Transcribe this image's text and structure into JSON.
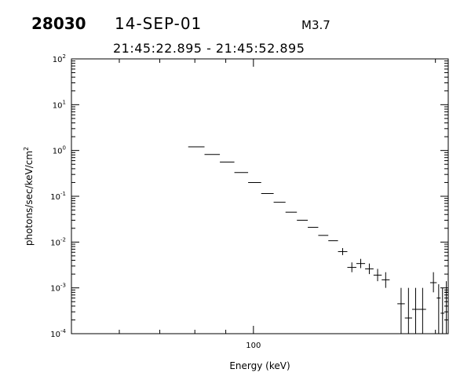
{
  "header": {
    "event_id": "28030",
    "date": "14-SEP-01",
    "flare_class": "M3.7",
    "time_range": "21:45:22.895 - 21:45:52.895"
  },
  "chart_data": {
    "type": "scatter",
    "title": "",
    "xlabel": "Energy (keV)",
    "ylabel_base": "photons/sec/keV/cm",
    "ylabel_sup": "2",
    "xscale": "log",
    "yscale": "log",
    "xlim": [
      50,
      210
    ],
    "ylim": [
      0.0001,
      100
    ],
    "x_major_ticks": [
      {
        "value": 100,
        "label": "100"
      }
    ],
    "y_major_ticks": [
      {
        "value": 0.0001,
        "base": "10",
        "exp": "-4"
      },
      {
        "value": 0.001,
        "base": "10",
        "exp": "-3"
      },
      {
        "value": 0.01,
        "base": "10",
        "exp": "-2"
      },
      {
        "value": 0.1,
        "base": "10",
        "exp": "-1"
      },
      {
        "value": 1,
        "base": "10",
        "exp": "0"
      },
      {
        "value": 10,
        "base": "10",
        "exp": "1"
      },
      {
        "value": 100,
        "base": "10",
        "exp": "2"
      }
    ],
    "grid": false,
    "legend": "none",
    "points": [
      {
        "x_lo": 78,
        "x_hi": 83,
        "y": 1.2
      },
      {
        "x_lo": 83,
        "x_hi": 88,
        "y": 0.82
      },
      {
        "x_lo": 88,
        "x_hi": 93,
        "y": 0.56
      },
      {
        "x_lo": 93,
        "x_hi": 98,
        "y": 0.33
      },
      {
        "x_lo": 98,
        "x_hi": 103,
        "y": 0.2
      },
      {
        "x_lo": 103,
        "x_hi": 108,
        "y": 0.115
      },
      {
        "x_lo": 108,
        "x_hi": 113,
        "y": 0.074
      },
      {
        "x_lo": 113,
        "x_hi": 118,
        "y": 0.045
      },
      {
        "x_lo": 118,
        "x_hi": 123,
        "y": 0.03
      },
      {
        "x_lo": 123,
        "x_hi": 128,
        "y": 0.021
      },
      {
        "x_lo": 128,
        "x_hi": 133,
        "y": 0.014
      },
      {
        "x_lo": 133,
        "x_hi": 138,
        "y": 0.0107
      },
      {
        "x_lo": 138,
        "x_hi": 143,
        "y": 0.0062,
        "y_lo": 0.0052,
        "y_hi": 0.0074
      },
      {
        "x_lo": 143,
        "x_hi": 148,
        "y": 0.0028,
        "y_lo": 0.0022,
        "y_hi": 0.0036
      },
      {
        "x_lo": 148,
        "x_hi": 153,
        "y": 0.0034,
        "y_lo": 0.0027,
        "y_hi": 0.0043
      },
      {
        "x_lo": 153,
        "x_hi": 158,
        "y": 0.0026,
        "y_lo": 0.002,
        "y_hi": 0.0034
      },
      {
        "x_lo": 158,
        "x_hi": 163,
        "y": 0.0019,
        "y_lo": 0.0014,
        "y_hi": 0.0026
      },
      {
        "x_lo": 163,
        "x_hi": 168,
        "y": 0.0015,
        "y_lo": 0.001,
        "y_hi": 0.0022
      },
      {
        "x_lo": 173,
        "x_hi": 178,
        "y": 0.00045,
        "y_lo": 0.0001,
        "y_hi": 0.001
      },
      {
        "x_lo": 178,
        "x_hi": 183,
        "y": 0.00022,
        "y_lo": 0.0001,
        "y_hi": 0.001
      },
      {
        "x_lo": 183,
        "x_hi": 188,
        "y": 0.00034,
        "y_lo": 0.0001,
        "y_hi": 0.001
      },
      {
        "x_lo": 188,
        "x_hi": 193,
        "y": 0.00034,
        "y_lo": 0.0001,
        "y_hi": 0.001
      },
      {
        "x_lo": 196,
        "x_hi": 201,
        "y": 0.0013,
        "y_lo": 0.0008,
        "y_hi": 0.0022
      },
      {
        "x_lo": 201,
        "x_hi": 204,
        "y": 0.0006,
        "y_lo": 0.0001,
        "y_hi": 0.0012
      },
      {
        "x_lo": 204,
        "x_hi": 207,
        "y": 0.00028,
        "y_lo": 0.0001,
        "y_hi": 0.001
      },
      {
        "x_lo": 207,
        "x_hi": 210,
        "y": 0.0008,
        "y_lo": 0.0001,
        "y_hi": 0.0014
      }
    ]
  }
}
